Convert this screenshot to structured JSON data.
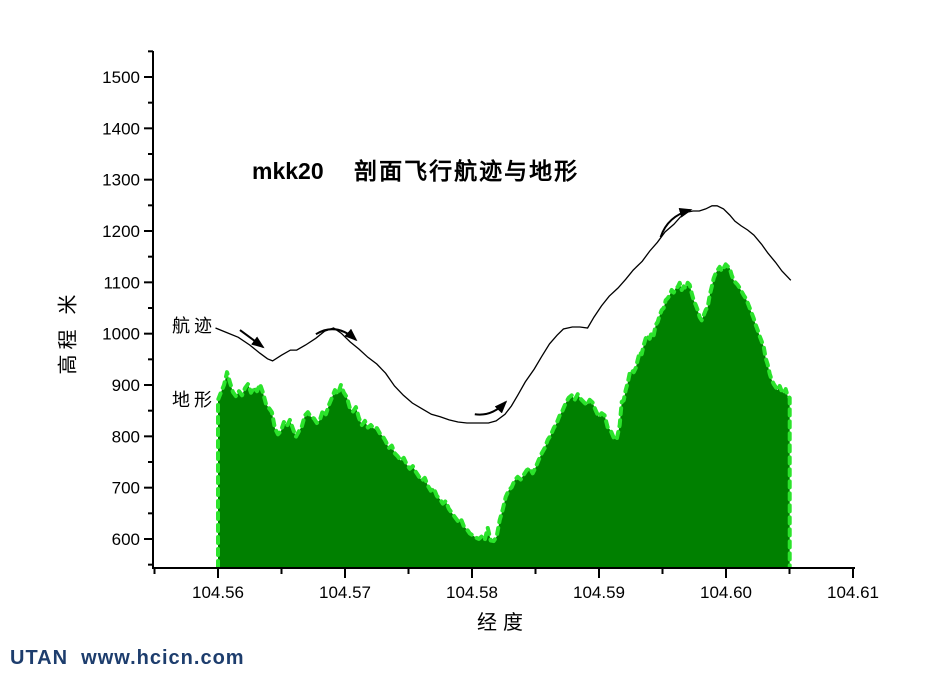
{
  "footer": {
    "text": "UTAN  www.hcicn.com",
    "color": "#1d3d6d"
  },
  "chart_data": {
    "type": "area",
    "title": {
      "prefix": "mkk20",
      "text": "剖面飞行航迹与地形"
    },
    "xlabel": "经度",
    "ylabel": "高程 米",
    "x_axis": {
      "min": 104.5549,
      "max": 104.6102,
      "major_ticks": [
        104.56,
        104.57,
        104.58,
        104.59,
        104.6,
        104.61
      ],
      "major_tick_labels": [
        "104.56",
        "104.57",
        "104.58",
        "104.59",
        "104.60",
        "104.61"
      ],
      "minor_ticks": [
        104.555,
        104.565,
        104.575,
        104.585,
        104.595,
        104.605
      ]
    },
    "y_axis": {
      "min": 542,
      "max": 1550,
      "major_ticks": [
        600,
        700,
        800,
        900,
        1000,
        1100,
        1200,
        1300,
        1400,
        1500
      ],
      "minor_ticks": [
        550,
        650,
        750,
        850,
        950,
        1050,
        1150,
        1250,
        1350,
        1450,
        1550
      ]
    },
    "grid": false,
    "series": [
      {
        "name": "地形",
        "type": "area",
        "fill": "#008000",
        "stroke": "#2be32b",
        "stroke_style": "dashed",
        "segments": [
          {
            "lon_start": 104.56,
            "lon_step": 0.000236,
            "elevations": [
              871,
              886,
              900,
              925,
              905,
              886,
              878,
              888,
              880,
              894,
              902,
              885,
              895,
              888,
              902,
              885,
              863,
              855,
              847,
              816,
              804,
              810,
              828,
              820,
              832,
              815,
              799,
              810,
              820,
              841,
              847,
              838,
              835,
              826,
              832,
              851,
              843,
              861,
              875,
              890,
              882,
              900,
              885,
              876,
              855,
              848,
              857,
              836,
              822,
              830,
              817,
              822,
              815,
              816,
              806,
              800,
              790,
              777,
              782,
              767,
              761,
              753,
              758,
              745,
              737,
              742,
              731,
              722,
              714,
              719,
              704,
              694,
              699,
              684,
              678,
              669,
              674,
              659,
              651,
              643,
              635,
              640,
              625,
              619,
              611,
              607,
              603,
              600,
              605,
              598,
              622,
              597,
              596,
              605,
              637,
              657,
              682,
              695,
              701,
              715,
              721,
              716,
              725,
              734,
              738,
              728,
              740,
              754,
              767,
              777,
              793,
              802,
              816,
              826,
              841,
              851,
              865,
              875,
              880,
              871,
              882,
              873,
              867,
              861,
              871,
              866,
              851,
              838,
              845,
              841,
              818,
              812,
              798,
              793
            ]
          },
          {
            "lon_start": 104.59163,
            "lon_step": 0.0001575,
            "elevations": [
              822,
              867,
              870,
              890,
              904,
              923,
              929,
              925,
              933,
              949,
              964,
              960,
              978,
              991,
              997,
              990,
              1003,
              997,
              1017,
              1023,
              1036,
              1046,
              1050,
              1065,
              1069,
              1075,
              1085,
              1080,
              1089,
              1091,
              1099,
              1085,
              1092,
              1088,
              1099,
              1095,
              1079,
              1065,
              1056,
              1046,
              1032,
              1026,
              1036,
              1046,
              1052,
              1075,
              1091,
              1108,
              1118,
              1124,
              1130,
              1122,
              1128,
              1135,
              1131,
              1128,
              1114,
              1104,
              1099,
              1095,
              1089,
              1082,
              1075,
              1069,
              1060,
              1050,
              1040,
              1030,
              1017,
              1007,
              995,
              985,
              975,
              952,
              940,
              922,
              910,
              902,
              896,
              890,
              898,
              888,
              884,
              892,
              878,
              875
            ]
          }
        ]
      },
      {
        "name": "航迹",
        "type": "line",
        "color": "#000000",
        "points": [
          [
            104.5598,
            1011
          ],
          [
            104.5606,
            1003
          ],
          [
            104.5616,
            993
          ],
          [
            104.5625,
            978
          ],
          [
            104.5633,
            962
          ],
          [
            104.5639,
            951
          ],
          [
            104.5643,
            947
          ],
          [
            104.565,
            958
          ],
          [
            104.5657,
            968
          ],
          [
            104.5662,
            968
          ],
          [
            104.5669,
            978
          ],
          [
            104.5677,
            991
          ],
          [
            104.5684,
            1005
          ],
          [
            104.5691,
            1011
          ],
          [
            104.5697,
            1001
          ],
          [
            104.5704,
            984
          ],
          [
            104.5711,
            970
          ],
          [
            104.5718,
            954
          ],
          [
            104.5725,
            941
          ],
          [
            104.5732,
            923
          ],
          [
            104.5739,
            898
          ],
          [
            104.5746,
            880
          ],
          [
            104.5753,
            865
          ],
          [
            104.5761,
            853
          ],
          [
            104.5768,
            843
          ],
          [
            104.5775,
            838
          ],
          [
            104.5782,
            832
          ],
          [
            104.5789,
            828
          ],
          [
            104.5796,
            826
          ],
          [
            104.5805,
            826
          ],
          [
            104.5813,
            826
          ],
          [
            104.5819,
            830
          ],
          [
            104.5826,
            843
          ],
          [
            104.5831,
            859
          ],
          [
            104.5836,
            880
          ],
          [
            104.5842,
            906
          ],
          [
            104.5849,
            931
          ],
          [
            104.5855,
            956
          ],
          [
            104.5861,
            980
          ],
          [
            104.5867,
            997
          ],
          [
            104.5872,
            1009
          ],
          [
            104.5879,
            1013
          ],
          [
            104.5885,
            1013
          ],
          [
            104.5891,
            1011
          ],
          [
            104.5896,
            1032
          ],
          [
            104.5902,
            1054
          ],
          [
            104.5908,
            1073
          ],
          [
            104.5915,
            1089
          ],
          [
            104.5921,
            1106
          ],
          [
            104.5927,
            1124
          ],
          [
            104.5934,
            1141
          ],
          [
            104.594,
            1161
          ],
          [
            104.5946,
            1178
          ],
          [
            104.5952,
            1198
          ],
          [
            104.5959,
            1213
          ],
          [
            104.5964,
            1227
          ],
          [
            104.597,
            1237
          ],
          [
            104.5974,
            1239
          ],
          [
            104.5979,
            1239
          ],
          [
            104.5984,
            1243
          ],
          [
            104.5989,
            1249
          ],
          [
            104.5993,
            1249
          ],
          [
            104.5998,
            1243
          ],
          [
            104.6003,
            1231
          ],
          [
            104.6007,
            1219
          ],
          [
            104.6012,
            1210
          ],
          [
            104.6017,
            1202
          ],
          [
            104.6022,
            1192
          ],
          [
            104.6028,
            1174
          ],
          [
            104.6033,
            1157
          ],
          [
            104.6039,
            1139
          ],
          [
            104.6044,
            1122
          ],
          [
            104.6051,
            1104
          ]
        ]
      }
    ],
    "annotations": {
      "arrows": [
        {
          "from": [
            104.56173,
            1007
          ],
          "ctrl": null,
          "to": [
            104.56354,
            974
          ]
        },
        {
          "from": [
            104.56771,
            999
          ],
          "ctrl": [
            104.56929,
            1023
          ],
          "to": [
            104.57086,
            988
          ]
        },
        {
          "from": [
            104.58022,
            843
          ],
          "ctrl": [
            104.58156,
            838
          ],
          "to": [
            104.58266,
            867
          ]
        },
        {
          "from": [
            104.59485,
            1188
          ],
          "ctrl": [
            104.5954,
            1229
          ],
          "to": [
            104.59721,
            1241
          ]
        }
      ]
    }
  }
}
